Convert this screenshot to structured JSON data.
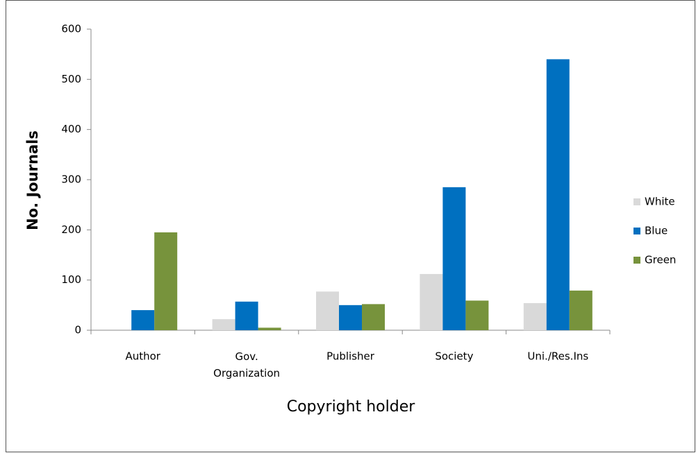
{
  "chart_data": {
    "type": "bar",
    "categories": [
      "Author",
      "Gov. Organization",
      "Publisher",
      "Society",
      "Uni./Res.Ins"
    ],
    "series": [
      {
        "name": "White",
        "color": "#d9d9d9",
        "values": [
          0,
          22,
          77,
          112,
          54
        ]
      },
      {
        "name": "Blue",
        "color": "#0070c0",
        "values": [
          40,
          57,
          50,
          285,
          540
        ]
      },
      {
        "name": "Green",
        "color": "#77933c",
        "values": [
          195,
          5,
          52,
          59,
          79
        ]
      }
    ],
    "ylim": [
      0,
      600
    ],
    "yticks": [
      0,
      100,
      200,
      300,
      400,
      500,
      600
    ],
    "ylabel": "No. Journals",
    "xlabel": "Copyright holder",
    "legend": "right",
    "grid": false
  }
}
